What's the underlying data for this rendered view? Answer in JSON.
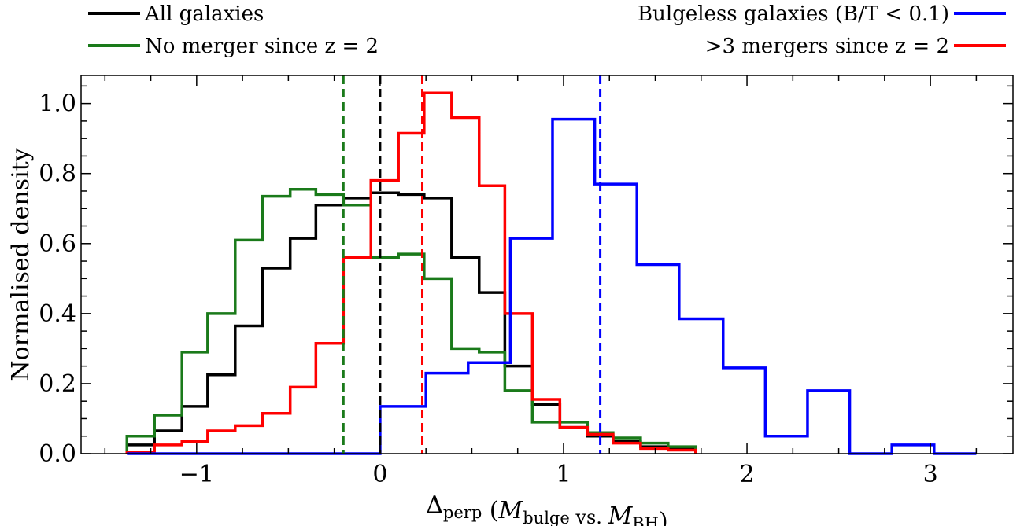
{
  "chart_data": {
    "type": "line",
    "xlabel": "Δperp (Mbulge vs. MBH)",
    "ylabel": "Normalised density",
    "xlim": [
      -1.63,
      3.45
    ],
    "ylim": [
      0,
      1.08
    ],
    "xticks": [
      -1,
      0,
      1,
      2,
      3
    ],
    "yticks": [
      0.0,
      0.2,
      0.4,
      0.6,
      0.8,
      1.0
    ],
    "xtick_labels": [
      "−1",
      "0",
      "1",
      "2",
      "3"
    ],
    "ytick_labels": [
      "0.0",
      "0.2",
      "0.4",
      "0.6",
      "0.8",
      "1.0"
    ],
    "grid": false,
    "legend_entries": [
      {
        "label": "All galaxies",
        "color": "#000000",
        "position": "top-left"
      },
      {
        "label": "No merger since z = 2",
        "color": "#1a7a1a",
        "position": "top-left"
      },
      {
        "label": "Bulgeless galaxies (B/T < 0.1)",
        "color": "#0000ff",
        "position": "top-right"
      },
      {
        "label": ">3 mergers since z = 2",
        "color": "#ff0000",
        "position": "top-right"
      }
    ],
    "series": [
      {
        "name": "All galaxies",
        "color": "#000000",
        "edges": [
          -1.38,
          -1.23,
          -1.08,
          -0.94,
          -0.79,
          -0.64,
          -0.49,
          -0.35,
          -0.2,
          -0.05,
          0.1,
          0.24,
          0.39,
          0.54,
          0.68,
          0.83,
          0.98,
          1.13,
          1.27,
          1.42,
          1.57,
          1.72
        ],
        "values": [
          0.025,
          0.065,
          0.135,
          0.225,
          0.365,
          0.53,
          0.615,
          0.71,
          0.73,
          0.745,
          0.74,
          0.73,
          0.56,
          0.46,
          0.25,
          0.14,
          0.075,
          0.05,
          0.035,
          0.02,
          0.015
        ],
        "median": 0.0
      },
      {
        "name": "No merger since z = 2",
        "color": "#1a7a1a",
        "edges": [
          -1.38,
          -1.23,
          -1.08,
          -0.94,
          -0.79,
          -0.64,
          -0.49,
          -0.35,
          -0.2,
          -0.05,
          0.1,
          0.24,
          0.39,
          0.54,
          0.68,
          0.83,
          0.98,
          1.13,
          1.27,
          1.42,
          1.57,
          1.72
        ],
        "values": [
          0.05,
          0.11,
          0.29,
          0.4,
          0.61,
          0.735,
          0.755,
          0.74,
          0.71,
          0.56,
          0.57,
          0.5,
          0.3,
          0.29,
          0.18,
          0.09,
          0.09,
          0.06,
          0.045,
          0.03,
          0.02
        ],
        "median": -0.2
      },
      {
        "name": ">3 mergers since z = 2",
        "color": "#ff0000",
        "edges": [
          -1.38,
          -1.23,
          -1.08,
          -0.94,
          -0.79,
          -0.64,
          -0.49,
          -0.35,
          -0.2,
          -0.05,
          0.1,
          0.24,
          0.39,
          0.54,
          0.68,
          0.83,
          0.98,
          1.13,
          1.27,
          1.42,
          1.57,
          1.72
        ],
        "values": [
          0.005,
          0.025,
          0.035,
          0.065,
          0.08,
          0.115,
          0.19,
          0.315,
          0.56,
          0.78,
          0.915,
          1.03,
          0.96,
          0.765,
          0.4,
          0.155,
          0.075,
          0.055,
          0.03,
          0.015,
          0.01
        ],
        "median": 0.23
      },
      {
        "name": "Bulgeless galaxies (B/T < 0.1)",
        "color": "#0000ff",
        "edges": [
          -1.38,
          0.0,
          0.25,
          0.48,
          0.71,
          0.94,
          1.17,
          1.4,
          1.63,
          1.87,
          2.1,
          2.33,
          2.56,
          2.79,
          3.02,
          3.25
        ],
        "values": [
          0.0,
          0.135,
          0.23,
          0.26,
          0.615,
          0.955,
          0.77,
          0.54,
          0.385,
          0.245,
          0.05,
          0.18,
          0.0,
          0.025,
          0.0
        ],
        "median": 1.2
      }
    ]
  }
}
